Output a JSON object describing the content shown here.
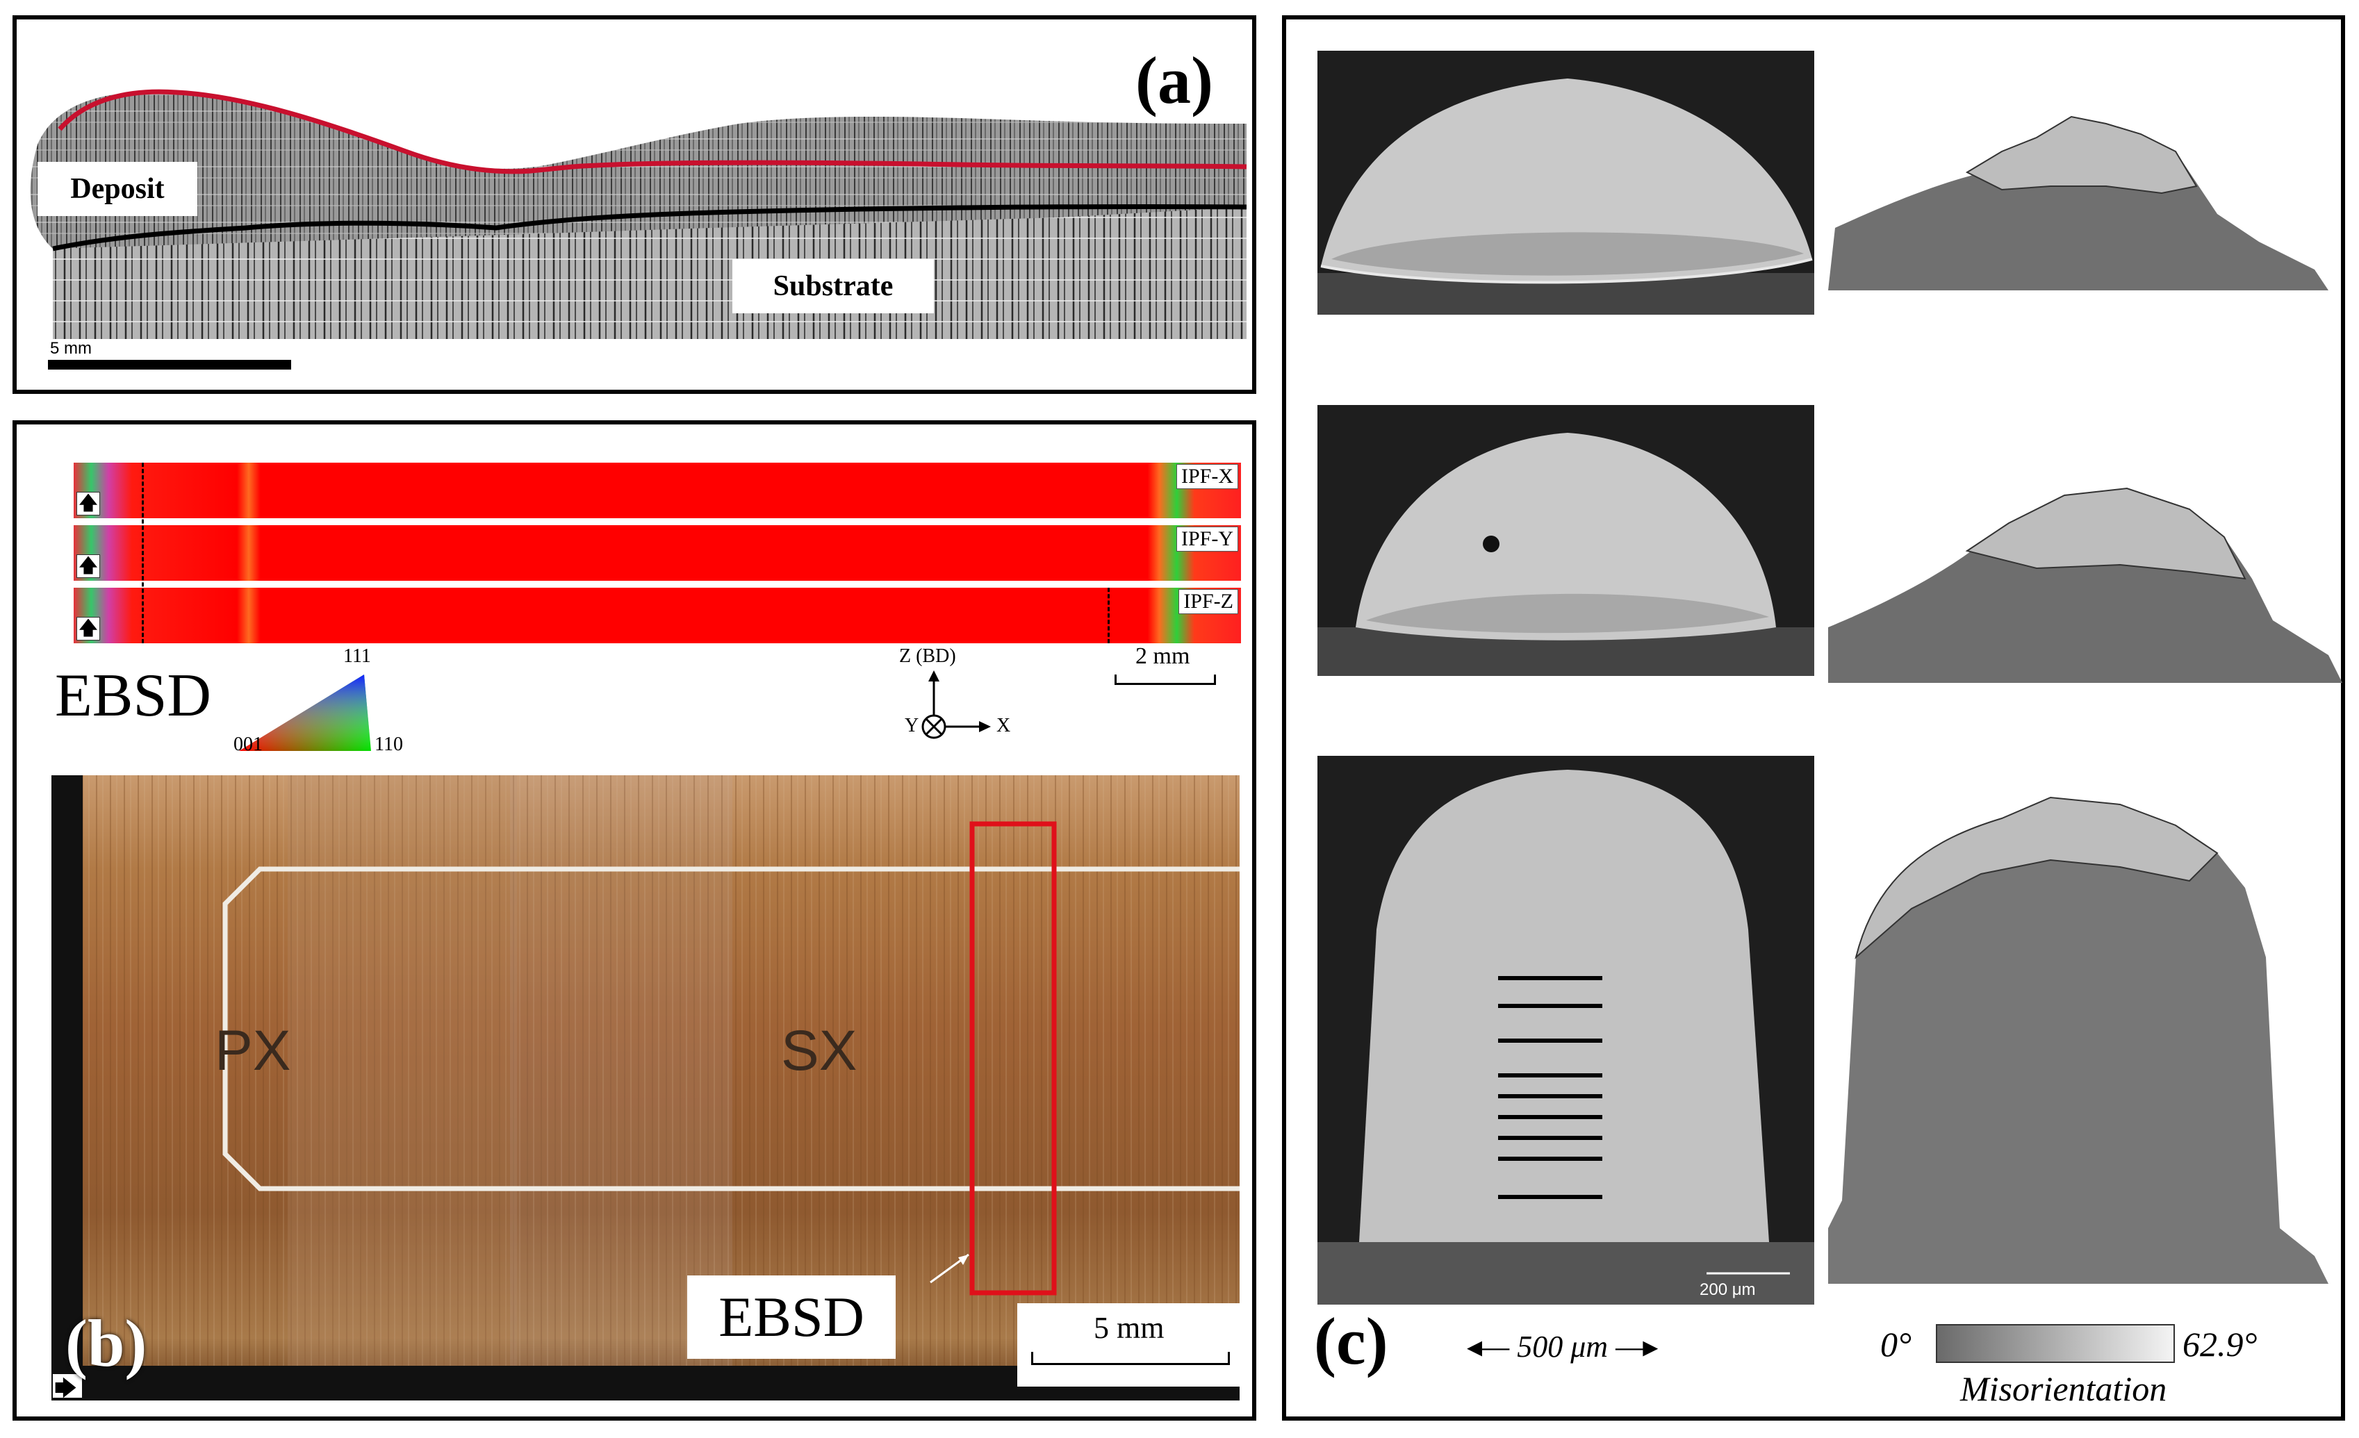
{
  "panel_a": {
    "label": "(a)",
    "deposit_label": "Deposit",
    "substrate_label": "Substrate",
    "scale_text": "5 mm"
  },
  "panel_b": {
    "label": "(b)",
    "ipf_tags": [
      "IPF-X",
      "IPF-Y",
      "IPF-Z"
    ],
    "ebsd_title": "EBSD",
    "triangle": {
      "top": "111",
      "left": "001",
      "right": "110"
    },
    "axes": {
      "z": "Z (BD)",
      "y": "Y",
      "x": "X"
    },
    "ipf_scale_text": "2 mm",
    "px_label": "PX",
    "sx_label": "SX",
    "ebsd_box_label": "EBSD",
    "macro_scale_text": "5 mm"
  },
  "panel_c": {
    "label": "(c)",
    "inner_scale_text": "200 μm",
    "width_scale_text": "500 μm",
    "colorbar_min": "0°",
    "colorbar_max": "62.9°",
    "colorbar_title": "Misorientation"
  },
  "colors": {
    "deposit_line": "#c8102e",
    "ipf_red": "#ff0000",
    "ebsd_box": "#e0101a",
    "macro_brown": "#a8642c"
  }
}
